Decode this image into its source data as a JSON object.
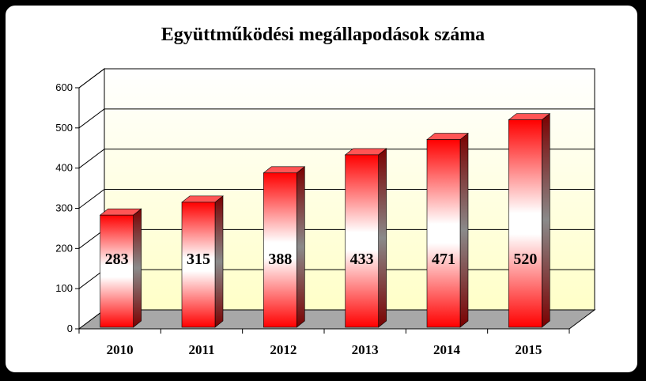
{
  "chart_data": {
    "type": "bar",
    "title": "Együttműködési megállapodások száma",
    "categories": [
      "2010",
      "2011",
      "2012",
      "2013",
      "2014",
      "2015"
    ],
    "values": [
      283,
      315,
      388,
      433,
      471,
      520
    ],
    "ylim": [
      0,
      600
    ],
    "yticks": [
      "0",
      "100",
      "200",
      "300",
      "400",
      "500",
      "600"
    ],
    "data_labels": [
      "283",
      "315",
      "388",
      "433",
      "471",
      "520"
    ],
    "grid": true,
    "style": "3d-cylinder-gradient",
    "colors": {
      "bar_edge": "#ff0000",
      "bar_center": "#ffffff",
      "wall_light": "#ffffc8",
      "floor": "#a8a8a8"
    }
  }
}
